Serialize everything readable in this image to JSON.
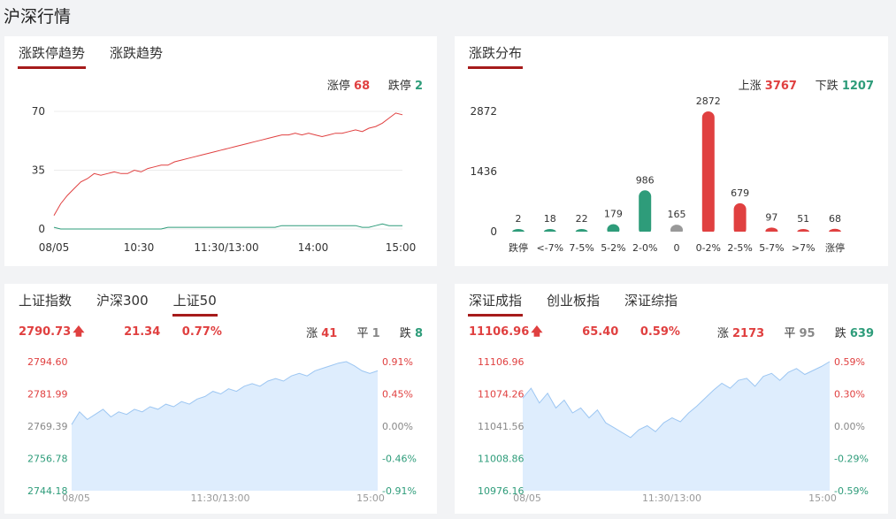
{
  "page_title": "沪深行情",
  "colors": {
    "up": "#e04040",
    "down": "#2e9c7a",
    "flat": "#888888",
    "area": "#deedfd",
    "areaLine": "#9cc6f2",
    "grid": "#ececec"
  },
  "trend": {
    "tabs": [
      "涨跌停趋势",
      "涨跌趋势"
    ],
    "limit_up_label": "涨停",
    "limit_up_value": "68",
    "limit_down_label": "跌停",
    "limit_down_value": "2"
  },
  "dist": {
    "tabs": [
      "涨跌分布"
    ],
    "rise_label": "上涨",
    "rise_value": "3767",
    "fall_label": "下跌",
    "fall_value": "1207"
  },
  "sh": {
    "tabs": [
      "上证指数",
      "沪深300",
      "上证50"
    ],
    "price": "2790.73",
    "arrow": "up-arrow-icon",
    "change": "21.34",
    "pct": "0.77%",
    "up_label": "涨",
    "up_value": "41",
    "flat_label": "平",
    "flat_value": "1",
    "down_label": "跌",
    "down_value": "8"
  },
  "sz": {
    "tabs": [
      "深证成指",
      "创业板指",
      "深证综指"
    ],
    "price": "11106.96",
    "arrow": "up-arrow-icon",
    "change": "65.40",
    "pct": "0.59%",
    "up_label": "涨",
    "up_value": "2173",
    "flat_label": "平",
    "flat_value": "95",
    "down_label": "跌",
    "down_value": "639"
  },
  "chart_data": [
    {
      "type": "line",
      "yticks": [
        "70",
        "35",
        "0"
      ],
      "ylim": [
        0,
        70
      ],
      "xticks": [
        "08/05",
        "10:30",
        "11:30/13:00",
        "14:00",
        "15:00"
      ],
      "series": [
        {
          "name": "涨停",
          "color": "#e04040",
          "values": [
            8,
            15,
            20,
            24,
            28,
            30,
            33,
            32,
            33,
            34,
            33,
            33,
            35,
            34,
            36,
            37,
            38,
            38,
            40,
            41,
            42,
            43,
            44,
            45,
            46,
            47,
            48,
            49,
            50,
            51,
            52,
            53,
            54,
            55,
            56,
            56,
            57,
            56,
            57,
            56,
            55,
            56,
            57,
            57,
            58,
            59,
            58,
            60,
            61,
            63,
            66,
            69,
            68
          ]
        },
        {
          "name": "跌停",
          "color": "#2e9c7a",
          "values": [
            1,
            0,
            0,
            0,
            0,
            0,
            0,
            0,
            0,
            0,
            0,
            0,
            0,
            0,
            0,
            0,
            0,
            1,
            1,
            1,
            1,
            1,
            1,
            1,
            1,
            1,
            1,
            1,
            1,
            1,
            1,
            1,
            1,
            1,
            2,
            2,
            2,
            2,
            2,
            2,
            2,
            2,
            2,
            2,
            2,
            2,
            1,
            1,
            2,
            3,
            2,
            2,
            2
          ]
        }
      ]
    },
    {
      "type": "bar",
      "yticks": [
        "2872",
        "1436",
        "0"
      ],
      "ylim": [
        0,
        2872
      ],
      "categories": [
        "跌停",
        "<-7%",
        "7-5%",
        "5-2%",
        "2-0%",
        "0",
        "0-2%",
        "2-5%",
        "5-7%",
        ">7%",
        "涨停"
      ],
      "values": [
        2,
        18,
        22,
        179,
        986,
        165,
        2872,
        679,
        97,
        51,
        68
      ],
      "bar_colors": [
        "#2e9c7a",
        "#2e9c7a",
        "#2e9c7a",
        "#2e9c7a",
        "#2e9c7a",
        "#999999",
        "#e04040",
        "#e04040",
        "#e04040",
        "#e04040",
        "#e04040"
      ]
    },
    {
      "type": "area",
      "yticks_left": [
        "2794.60",
        "2781.99",
        "2769.39",
        "2756.78",
        "2744.18"
      ],
      "yticks_right": [
        "0.91%",
        "0.45%",
        "0.00%",
        "-0.46%",
        "-0.91%"
      ],
      "ylim": [
        2744.18,
        2794.6
      ],
      "xticks": [
        "08/05",
        "11:30/13:00",
        "15:00"
      ],
      "values": [
        2770,
        2775,
        2772,
        2774,
        2776,
        2773,
        2775,
        2774,
        2776,
        2775,
        2777,
        2776,
        2778,
        2777,
        2779,
        2778,
        2780,
        2781,
        2783,
        2782,
        2784,
        2783,
        2785,
        2786,
        2785,
        2787,
        2788,
        2787,
        2789,
        2790,
        2789,
        2791,
        2792,
        2793,
        2794,
        2794.6,
        2793,
        2791,
        2790,
        2791
      ]
    },
    {
      "type": "area",
      "yticks_left": [
        "11106.96",
        "11074.26",
        "11041.56",
        "11008.86",
        "10976.16"
      ],
      "yticks_right": [
        "0.59%",
        "0.30%",
        "0.00%",
        "-0.29%",
        "-0.59%"
      ],
      "ylim": [
        10976.16,
        11106.96
      ],
      "xticks": [
        "08/05",
        "11:30/13:00",
        "15:00"
      ],
      "values": [
        11070,
        11080,
        11065,
        11075,
        11060,
        11068,
        11055,
        11060,
        11050,
        11058,
        11045,
        11040,
        11035,
        11030,
        11038,
        11042,
        11036,
        11045,
        11050,
        11046,
        11055,
        11062,
        11070,
        11078,
        11085,
        11080,
        11088,
        11090,
        11082,
        11092,
        11095,
        11088,
        11096,
        11100,
        11094,
        11098,
        11102,
        11106.96
      ]
    }
  ]
}
